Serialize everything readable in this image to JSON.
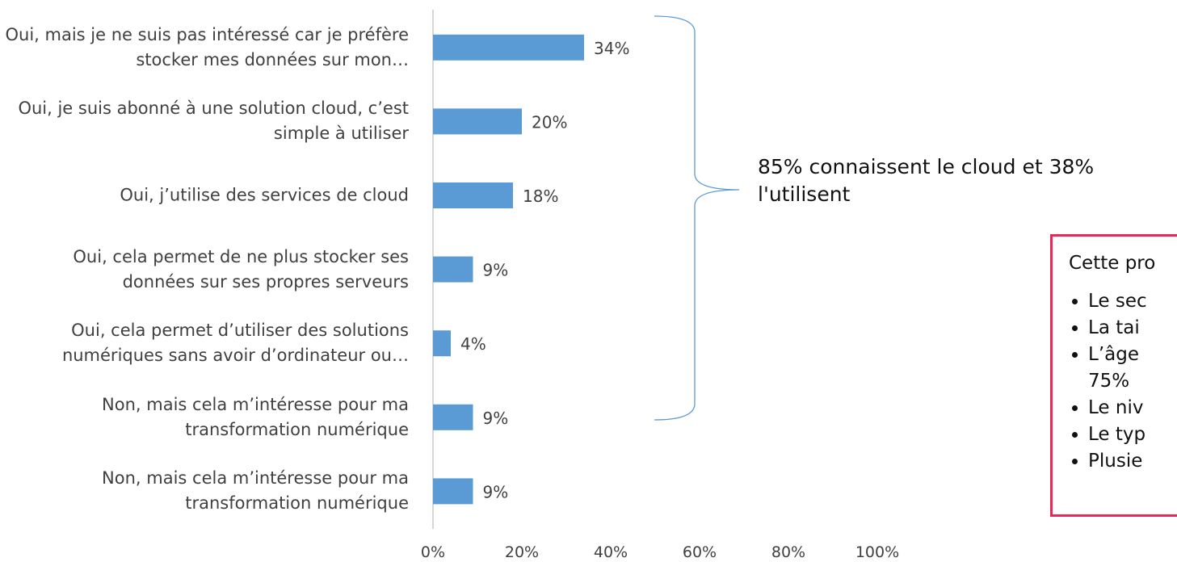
{
  "chart_data": {
    "type": "bar",
    "orientation": "horizontal",
    "categories": [
      "Oui, mais je ne suis pas intéressé car je préfère stocker mes données sur mon…",
      "Oui, je suis abonné à une solution cloud, c’est simple à utiliser",
      "Oui, j’utilise des services de cloud",
      "Oui, cela permet de ne plus stocker ses données sur ses propres serveurs",
      "Oui, cela permet d’utiliser des solutions numériques sans avoir d’ordinateur ou…",
      "Non, mais cela m’intéresse pour ma transformation numérique",
      "Non, mais cela m’intéresse pour ma transformation numérique"
    ],
    "values": [
      34,
      20,
      18,
      9,
      4,
      9,
      9
    ],
    "value_labels": [
      "34%",
      "20%",
      "18%",
      "9%",
      "4%",
      "9%",
      "9%"
    ],
    "color": "#5b9bd5",
    "xlim": [
      0,
      100
    ],
    "xticks": [
      {
        "value": 0,
        "label": "0%"
      },
      {
        "value": 20,
        "label": "20%"
      },
      {
        "value": 40,
        "label": "40%"
      },
      {
        "value": 60,
        "label": "60%"
      },
      {
        "value": 80,
        "label": "80%"
      },
      {
        "value": 100,
        "label": "100%"
      }
    ],
    "annotation": "85% connaissent le cloud et 38% l'utilisent",
    "note_box": {
      "title": "Cette pro",
      "items": [
        "Le sec",
        "La tai",
        "L’âge 75%",
        "Le niv",
        "Le typ",
        "Plusie"
      ]
    }
  }
}
